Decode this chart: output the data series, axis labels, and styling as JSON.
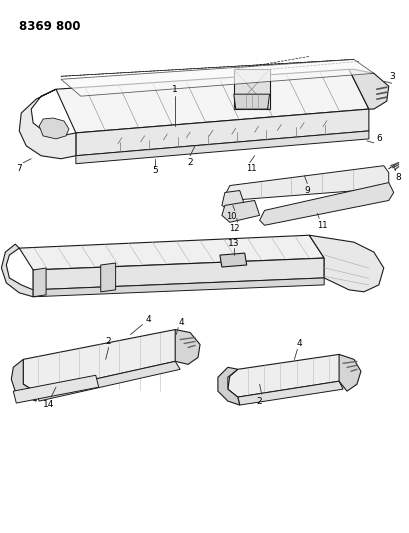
{
  "title": "8369 800",
  "bg": "#ffffff",
  "lc": "#1a1a1a",
  "fig_w": 4.1,
  "fig_h": 5.33,
  "dpi": 100
}
